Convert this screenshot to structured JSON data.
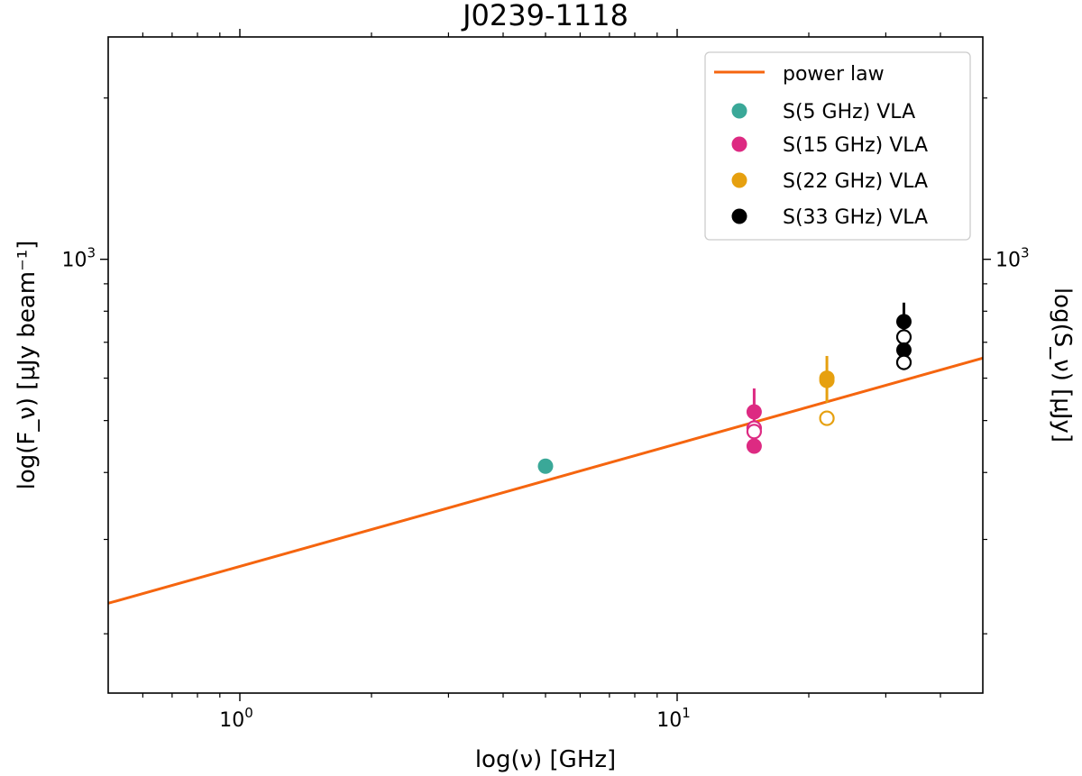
{
  "chart_data": {
    "type": "scatter",
    "title": "J0239-1118",
    "xlabel": "log(ν) [GHz]",
    "ylabel_left": "log(F_ν) [μJy beam⁻¹]",
    "ylabel_right": "log(S_ν) [μJy]",
    "xscale": "log",
    "yscale": "log",
    "xlim": [
      0.5,
      50
    ],
    "ylim": [
      155,
      2600
    ],
    "x_major_ticks": [
      {
        "value": 1,
        "base": "10",
        "exp": "0"
      },
      {
        "value": 10,
        "base": "10",
        "exp": "1"
      }
    ],
    "y_major_ticks": [
      {
        "value": 1000,
        "base": "10",
        "exp": "3"
      }
    ],
    "x_minor_ticks": [
      0.6,
      0.7,
      0.8,
      0.9,
      2,
      3,
      4,
      5,
      6,
      7,
      8,
      9,
      20,
      30,
      40
    ],
    "y_minor_ticks": [
      200,
      300,
      400,
      500,
      600,
      700,
      800,
      900,
      2000
    ],
    "power_law": {
      "name": "power law",
      "color": "#f5650f",
      "x": [
        0.5,
        50
      ],
      "y": [
        228,
        654
      ]
    },
    "series": [
      {
        "name": "S(5 GHz) VLA",
        "color": "#3aa898",
        "points": [
          {
            "x": 5.0,
            "y": 411,
            "filled": true,
            "err": 8
          }
        ]
      },
      {
        "name": "S(15 GHz) VLA",
        "color": "#dd2a82",
        "points": [
          {
            "x": 15.0,
            "y": 519,
            "filled": true,
            "err": 55
          },
          {
            "x": 15.0,
            "y": 484,
            "filled": false,
            "err": 0
          },
          {
            "x": 15.0,
            "y": 477,
            "filled": false,
            "err": 0
          },
          {
            "x": 15.0,
            "y": 448,
            "filled": true,
            "err": 0
          }
        ]
      },
      {
        "name": "S(22 GHz) VLA",
        "color": "#e6a00f",
        "points": [
          {
            "x": 22.0,
            "y": 600,
            "filled": true,
            "err": 60
          },
          {
            "x": 22.0,
            "y": 594,
            "filled": true,
            "err": 0
          },
          {
            "x": 22.0,
            "y": 505,
            "filled": false,
            "err": 0
          }
        ]
      },
      {
        "name": "S(33 GHz) VLA",
        "color": "#000000",
        "points": [
          {
            "x": 33.0,
            "y": 765,
            "filled": true,
            "err": 65
          },
          {
            "x": 33.0,
            "y": 716,
            "filled": false,
            "err": 0
          },
          {
            "x": 33.0,
            "y": 677,
            "filled": true,
            "err": 0
          },
          {
            "x": 33.0,
            "y": 642,
            "filled": false,
            "err": 0
          }
        ]
      }
    ],
    "legend": {
      "location": "upper right",
      "entries": [
        "power law",
        "S(5 GHz) VLA",
        "S(15 GHz) VLA",
        "S(22 GHz) VLA",
        "S(33 GHz) VLA"
      ]
    }
  }
}
